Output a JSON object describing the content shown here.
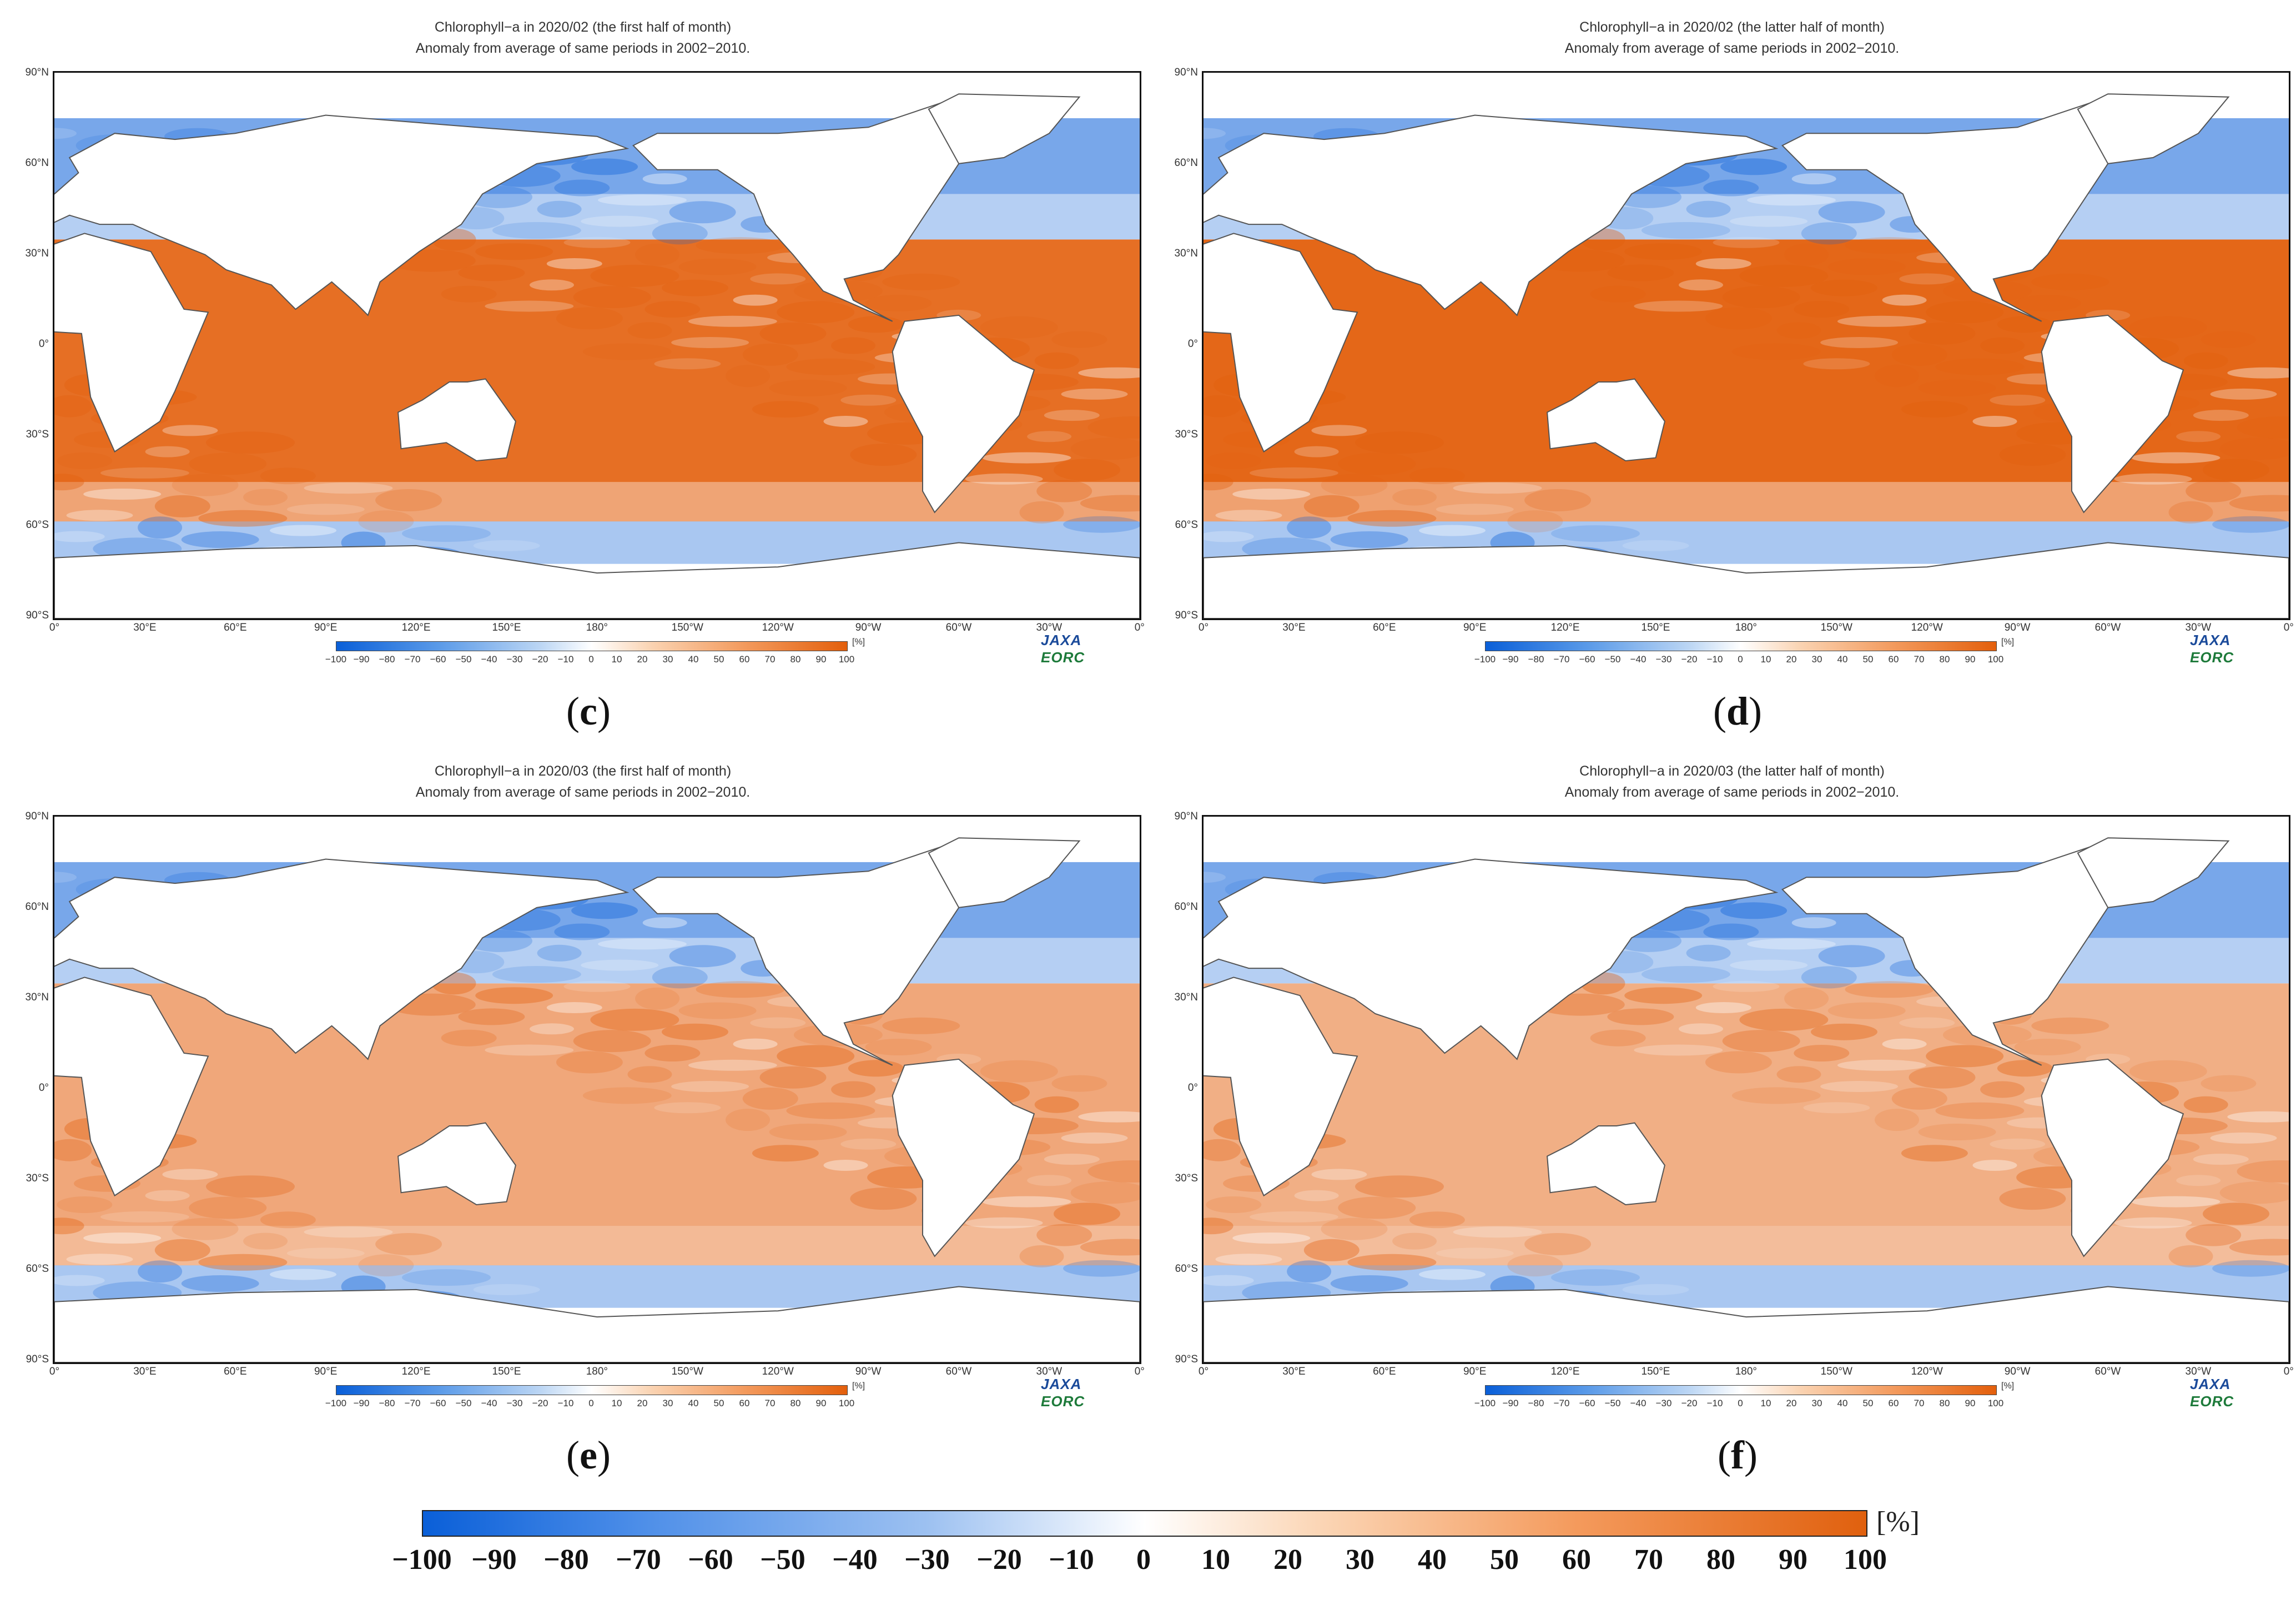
{
  "lat_labels": [
    "90°N",
    "60°N",
    "30°N",
    "0°",
    "30°S",
    "60°S",
    "90°S"
  ],
  "lon_labels": [
    "0°",
    "30°E",
    "60°E",
    "90°E",
    "120°E",
    "150°E",
    "180°",
    "150°W",
    "120°W",
    "90°W",
    "60°W",
    "30°W",
    "0°"
  ],
  "colorbar": {
    "unit": "[%]",
    "ticks": [
      "−100",
      "−90",
      "−80",
      "−70",
      "−60",
      "−50",
      "−40",
      "−30",
      "−20",
      "−10",
      "0",
      "10",
      "20",
      "30",
      "40",
      "50",
      "60",
      "70",
      "80",
      "90",
      "100"
    ],
    "colors": {
      "negative": "#0a5fd8",
      "zero": "#ffffff",
      "positive": "#e35f0c"
    }
  },
  "mini_ticks": [
    "−100",
    "−90",
    "−80",
    "−70",
    "−60",
    "−50",
    "−40",
    "−30",
    "−20",
    "−10",
    "0",
    "10",
    "20",
    "30",
    "40",
    "50",
    "60",
    "70",
    "80",
    "90",
    "100"
  ],
  "mini_unit": "[%]",
  "logo": {
    "a": "JAXA",
    "b": " EORC"
  },
  "panels": {
    "c": {
      "label": "c",
      "line1": "Chlorophyll−a in 2020/02 (the first half of month)",
      "line2": "Anomaly from average of same periods in 2002−2010.",
      "mean_anomaly_fraction": 0.55
    },
    "d": {
      "label": "d",
      "line1": "Chlorophyll−a in 2020/02 (the latter half of month)",
      "line2": "Anomaly from average of same periods in 2002−2010.",
      "mean_anomaly_fraction": 0.6
    },
    "e": {
      "label": "e",
      "line1": "Chlorophyll−a in 2020/03 (the first half of month)",
      "line2": "Anomaly from average of same periods in 2002−2010.",
      "mean_anomaly_fraction": 0.2
    },
    "f": {
      "label": "f",
      "line1": "Chlorophyll−a in 2020/03 (the latter half of month)",
      "line2": "Anomaly from average of same periods in 2002−2010.",
      "mean_anomaly_fraction": 0.15
    }
  }
}
